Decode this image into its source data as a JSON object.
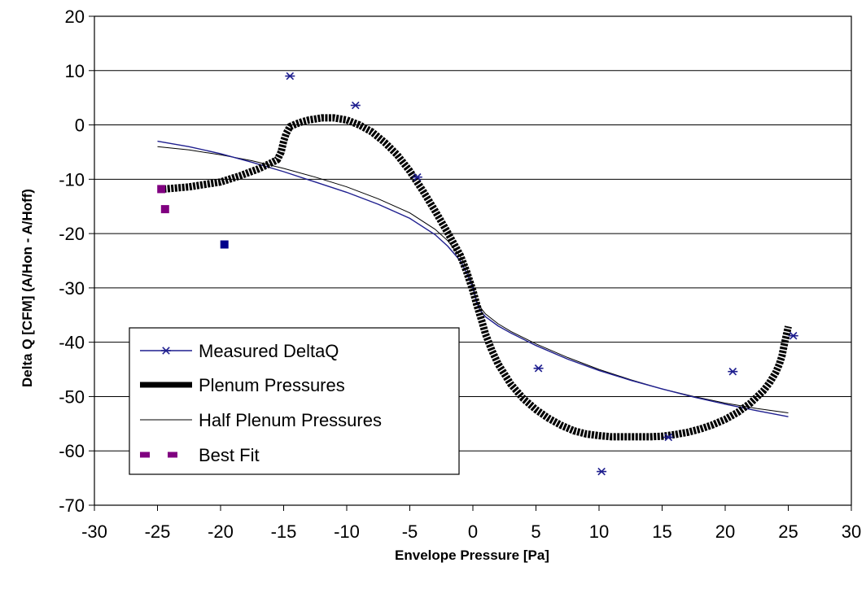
{
  "chart_data": {
    "type": "scatter",
    "title": "",
    "xlabel": "Envelope Pressure [Pa]",
    "ylabel": "Delta Q [CFM] (A/Hon - A/Hoff)",
    "xlim": [
      -30,
      30
    ],
    "ylim": [
      -70,
      20
    ],
    "xticks": [
      "-30",
      "-25",
      "-20",
      "-15",
      "-10",
      "-5",
      "0",
      "5",
      "10",
      "15",
      "20",
      "25",
      "30"
    ],
    "yticks": [
      "20",
      "10",
      "0",
      "-10",
      "-20",
      "-30",
      "-40",
      "-50",
      "-60",
      "-70"
    ],
    "grid": "horizontal",
    "legend_position": "bottom-left",
    "series": [
      {
        "name": "Measured DeltaQ",
        "style": "line-with-star-markers",
        "color": "#1f1f8f",
        "line": {
          "x": [
            -25,
            -22.5,
            -20,
            -17.5,
            -15,
            -12.5,
            -10,
            -7.5,
            -5,
            -3,
            -2,
            -1,
            -0.5,
            0,
            0.3,
            0.6,
            1,
            2,
            3,
            5,
            7.5,
            10,
            12.5,
            15,
            17.5,
            20,
            22.5,
            25
          ],
          "y": [
            -3,
            -4,
            -5.3,
            -6.9,
            -8.6,
            -10.5,
            -12.4,
            -14.6,
            -17.2,
            -20.2,
            -22.3,
            -25,
            -27.2,
            -30,
            -32.7,
            -34.2,
            -35.3,
            -37,
            -38.3,
            -40.6,
            -43.1,
            -45.2,
            -47,
            -48.6,
            -50.1,
            -51.4,
            -52.6,
            -53.7
          ]
        },
        "markers": {
          "x": [
            -14.5,
            -9.3,
            -4.4,
            5.2,
            10.2,
            15.5,
            20.6,
            25.4
          ],
          "y": [
            9,
            3.6,
            -9.6,
            -44.8,
            -63.8,
            -57.5,
            -45.4,
            -38.8
          ]
        }
      },
      {
        "name": "Plenum Pressures",
        "style": "thick-line",
        "color": "#000000",
        "x": [
          -24.5,
          -22.5,
          -20,
          -18.5,
          -17,
          -16,
          -15.5,
          -15.2,
          -15,
          -14.8,
          -14.5,
          -14,
          -13.5,
          -13,
          -12,
          -11,
          -10,
          -9,
          -8,
          -7,
          -6,
          -5,
          -4,
          -3,
          -2,
          -1,
          -0.5,
          0,
          0.3,
          0.7,
          1,
          1.5,
          2,
          3,
          4,
          5,
          6,
          7,
          8,
          9,
          10,
          11,
          12,
          13,
          14,
          15,
          16,
          17,
          18,
          19,
          20,
          21,
          22,
          23,
          23.5,
          24,
          24.3,
          24.5,
          24.7,
          25
        ],
        "y": [
          -11.8,
          -11.4,
          -10.5,
          -9.4,
          -8.1,
          -7,
          -6.4,
          -5,
          -3,
          -1.6,
          -0.3,
          0.2,
          0.6,
          0.9,
          1.3,
          1.3,
          0.9,
          0,
          -1.3,
          -3.2,
          -5.5,
          -8.5,
          -12,
          -15.8,
          -19.8,
          -24,
          -27,
          -30.5,
          -33,
          -36,
          -38.5,
          -41.5,
          -44,
          -47.7,
          -50.4,
          -52.4,
          -54,
          -55.3,
          -56.3,
          -56.9,
          -57.2,
          -57.4,
          -57.4,
          -57.4,
          -57.4,
          -57.3,
          -57,
          -56.6,
          -56,
          -55.2,
          -54.2,
          -52.9,
          -51.2,
          -49,
          -47.5,
          -45.6,
          -44,
          -42.5,
          -40.2,
          -37.1
        ]
      },
      {
        "name": "Half Plenum Pressures",
        "style": "thin-line",
        "color": "#000000",
        "x": [
          -25,
          -22.5,
          -20,
          -17.5,
          -15,
          -12.5,
          -10,
          -7.5,
          -5,
          -3,
          -2,
          -1,
          -0.5,
          0,
          0.3,
          0.6,
          1,
          2,
          3,
          5,
          7.5,
          10,
          12.5,
          15,
          17.5,
          20,
          22.5,
          25
        ],
        "y": [
          -4,
          -4.6,
          -5.5,
          -6.6,
          -8,
          -9.6,
          -11.4,
          -13.6,
          -16.2,
          -19.2,
          -21.3,
          -24.2,
          -26.3,
          -29.5,
          -32.4,
          -33.6,
          -34.8,
          -36.6,
          -38,
          -40.3,
          -42.8,
          -45,
          -46.9,
          -48.6,
          -50,
          -51.2,
          -52.2,
          -53
        ]
      },
      {
        "name": "Best Fit",
        "style": "square-markers",
        "color": "#800080",
        "x": [
          -24.4,
          -24.7
        ],
        "y": [
          -15.5,
          -11.8
        ]
      },
      {
        "name": "",
        "style": "square-markers",
        "color": "#00008b",
        "x": [
          -19.7
        ],
        "y": [
          -22
        ]
      }
    ]
  }
}
